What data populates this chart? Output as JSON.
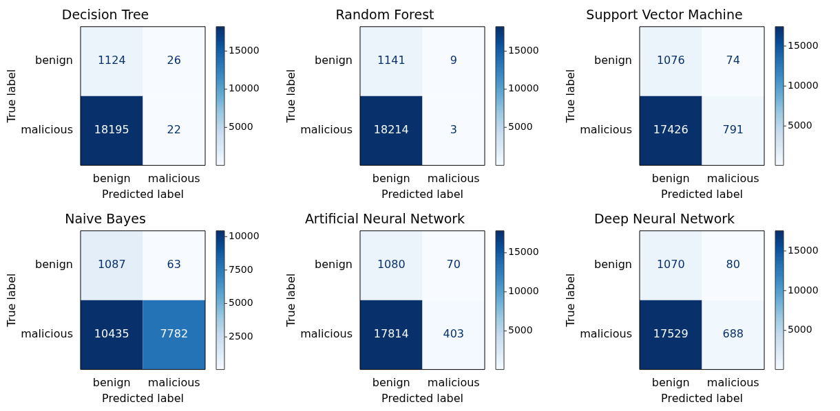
{
  "chart_data": [
    {
      "type": "heatmap",
      "title": "Decision Tree",
      "xlabel": "Predicted label",
      "ylabel": "True label",
      "categories": [
        "benign",
        "malicious"
      ],
      "y_categories": [
        "benign",
        "malicious"
      ],
      "cells": [
        [
          1124,
          26
        ],
        [
          18195,
          22
        ]
      ],
      "clim": [
        22,
        18195
      ],
      "cticks": [
        5000,
        10000,
        15000
      ],
      "data_labels": true
    },
    {
      "type": "heatmap",
      "title": "Random Forest",
      "xlabel": "Predicted label",
      "ylabel": "True label",
      "categories": [
        "benign",
        "malicious"
      ],
      "y_categories": [
        "benign",
        "malicious"
      ],
      "cells": [
        [
          1141,
          9
        ],
        [
          18214,
          3
        ]
      ],
      "clim": [
        3,
        18214
      ],
      "cticks": [
        5000,
        10000,
        15000
      ],
      "data_labels": true
    },
    {
      "type": "heatmap",
      "title": "Support Vector Machine",
      "xlabel": "Predicted label",
      "ylabel": "True label",
      "categories": [
        "benign",
        "malicious"
      ],
      "y_categories": [
        "benign",
        "malicious"
      ],
      "cells": [
        [
          1076,
          74
        ],
        [
          17426,
          791
        ]
      ],
      "clim": [
        74,
        17426
      ],
      "cticks": [
        5000,
        10000,
        15000
      ],
      "data_labels": true
    },
    {
      "type": "heatmap",
      "title": "Naive Bayes",
      "xlabel": "Predicted label",
      "ylabel": "True label",
      "categories": [
        "benign",
        "malicious"
      ],
      "y_categories": [
        "benign",
        "malicious"
      ],
      "cells": [
        [
          1087,
          63
        ],
        [
          10435,
          7782
        ]
      ],
      "clim": [
        63,
        10435
      ],
      "cticks": [
        2500,
        5000,
        7500,
        10000
      ],
      "data_labels": true
    },
    {
      "type": "heatmap",
      "title": "Artificial Neural Network",
      "xlabel": "Predicted label",
      "ylabel": "True label",
      "categories": [
        "benign",
        "malicious"
      ],
      "y_categories": [
        "benign",
        "malicious"
      ],
      "cells": [
        [
          1080,
          70
        ],
        [
          17814,
          403
        ]
      ],
      "clim": [
        70,
        17814
      ],
      "cticks": [
        5000,
        10000,
        15000
      ],
      "data_labels": true
    },
    {
      "type": "heatmap",
      "title": "Deep Neural Network",
      "xlabel": "Predicted label",
      "ylabel": "True label",
      "categories": [
        "benign",
        "malicious"
      ],
      "y_categories": [
        "benign",
        "malicious"
      ],
      "cells": [
        [
          1070,
          80
        ],
        [
          17529,
          688
        ]
      ],
      "clim": [
        80,
        17529
      ],
      "cticks": [
        5000,
        10000,
        15000
      ],
      "data_labels": true
    }
  ]
}
